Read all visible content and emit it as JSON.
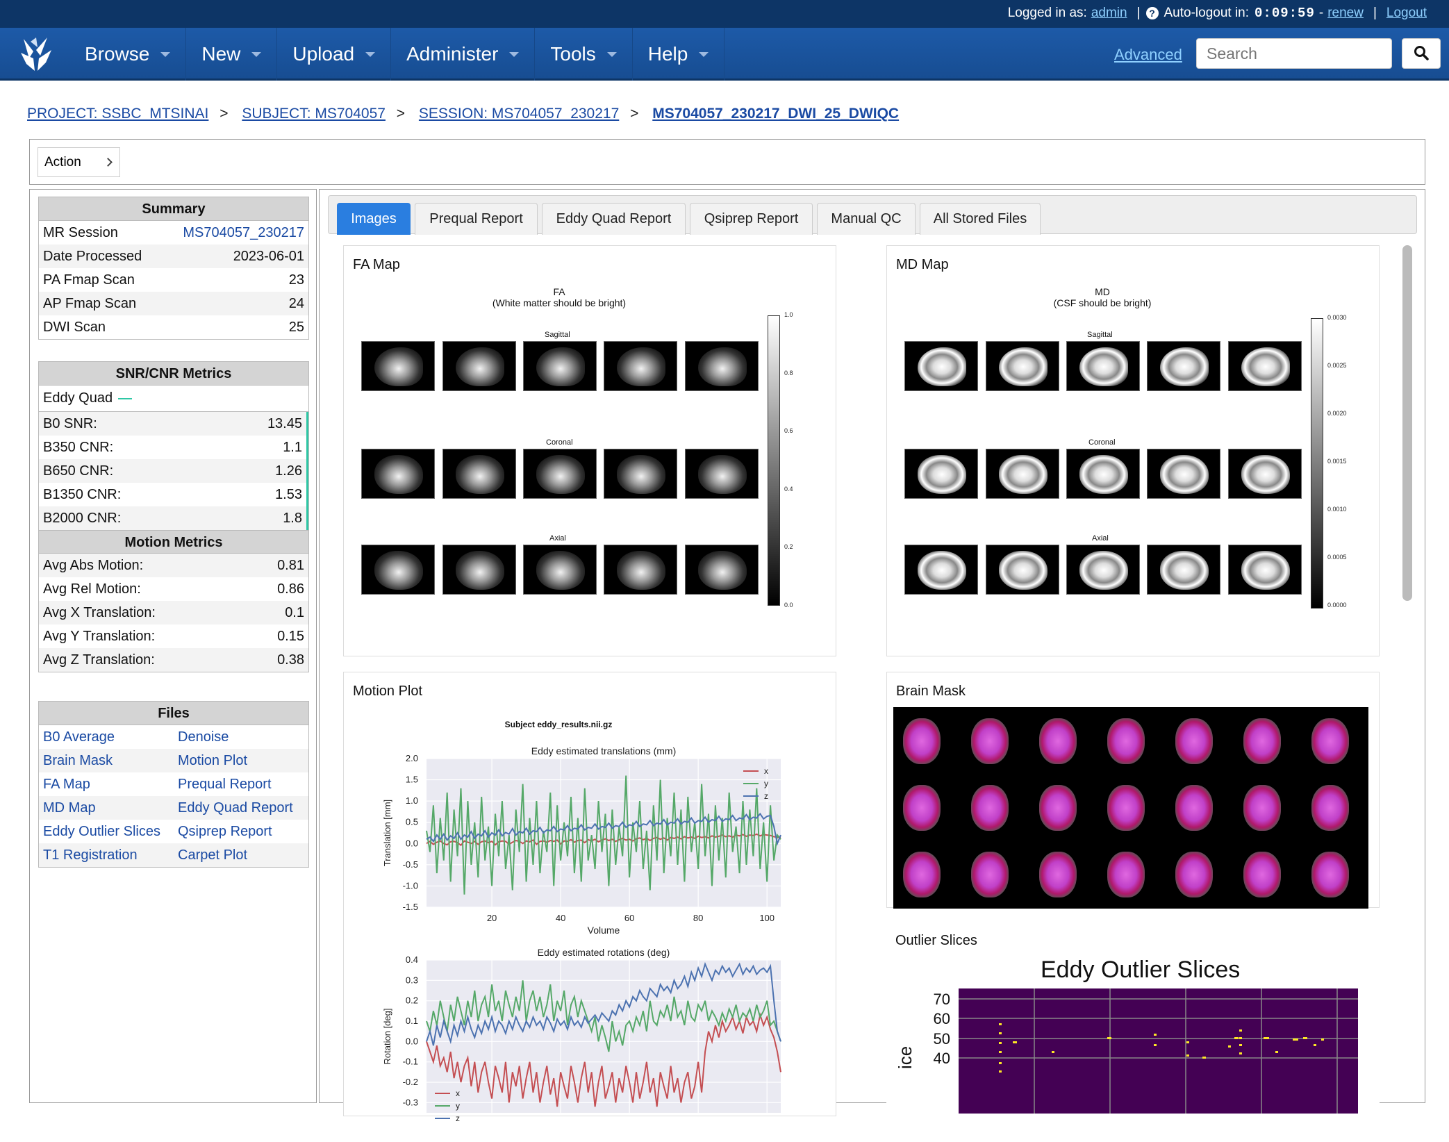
{
  "topbar": {
    "logged_in_label": "Logged in as:",
    "user": "admin",
    "autologout_label": "Auto-logout in:",
    "timer": "0:09:59",
    "timer_sep": "-",
    "renew": "renew",
    "logout": "Logout",
    "separator": "|"
  },
  "nav": {
    "items": [
      {
        "label": "Browse"
      },
      {
        "label": "New"
      },
      {
        "label": "Upload"
      },
      {
        "label": "Administer"
      },
      {
        "label": "Tools"
      },
      {
        "label": "Help"
      }
    ],
    "advanced": "Advanced",
    "search_placeholder": "Search"
  },
  "breadcrumb": {
    "project": "PROJECT: SSBC_MTSINAI",
    "subject": "SUBJECT: MS704057",
    "session": "SESSION: MS704057_230217",
    "current": "MS704057_230217_DWI_25_DWIQC",
    "sep": ">"
  },
  "action": {
    "label": "Action"
  },
  "summary": {
    "title": "Summary",
    "rows": [
      {
        "label": "MR Session",
        "value": "MS704057_230217"
      },
      {
        "label": "Date Processed",
        "value": "2023-06-01"
      },
      {
        "label": "PA Fmap Scan",
        "value": "23"
      },
      {
        "label": "AP Fmap Scan",
        "value": "24"
      },
      {
        "label": "DWI Scan",
        "value": "25"
      }
    ]
  },
  "snr": {
    "title": "SNR/CNR Metrics",
    "eddy_quad": "Eddy Quad",
    "rows": [
      {
        "label": "B0 SNR:",
        "value": "13.45"
      },
      {
        "label": "B350 CNR:",
        "value": "1.1"
      },
      {
        "label": "B650 CNR:",
        "value": "1.26"
      },
      {
        "label": "B1350 CNR:",
        "value": "1.53"
      },
      {
        "label": "B2000 CNR:",
        "value": "1.8"
      }
    ]
  },
  "motion": {
    "title": "Motion Metrics",
    "rows": [
      {
        "label": "Avg Abs Motion:",
        "value": "0.81"
      },
      {
        "label": "Avg Rel Motion:",
        "value": "0.86"
      },
      {
        "label": "Avg X Translation:",
        "value": "0.1"
      },
      {
        "label": "Avg Y Translation:",
        "value": "0.15"
      },
      {
        "label": "Avg Z Translation:",
        "value": "0.38"
      }
    ]
  },
  "files": {
    "title": "Files",
    "items": [
      "B0 Average",
      "Denoise",
      "Brain Mask",
      "Motion Plot",
      "FA Map",
      "Prequal Report",
      "MD Map",
      "Eddy Quad Report",
      "Eddy Outlier Slices",
      "Qsiprep Report",
      "T1 Registration",
      "Carpet Plot"
    ]
  },
  "tabs": [
    "Images",
    "Prequal Report",
    "Eddy Quad Report",
    "Qsiprep Report",
    "Manual QC",
    "All Stored Files"
  ],
  "fa": {
    "card_title": "FA Map",
    "title1": "FA",
    "title2": "(White matter should be bright)",
    "rows": [
      "Sagittal",
      "Coronal",
      "Axial"
    ],
    "cbar_ticks": [
      "1.0",
      "0.8",
      "0.6",
      "0.4",
      "0.2",
      "0.0"
    ]
  },
  "md": {
    "card_title": "MD Map",
    "title1": "MD",
    "title2": "(CSF should be bright)",
    "rows": [
      "Sagittal",
      "Coronal",
      "Axial"
    ],
    "cbar_ticks": [
      "0.0030",
      "0.0025",
      "0.0020",
      "0.0015",
      "0.0010",
      "0.0005",
      "0.0000"
    ]
  },
  "motion_plot": {
    "card_title": "Motion Plot",
    "subject": "Subject eddy_results.nii.gz"
  },
  "brain_mask": {
    "card_title": "Brain Mask"
  },
  "outlier": {
    "card_title": "Outlier Slices"
  },
  "colors": {
    "red": "#c44e52",
    "green": "#55a868",
    "blue": "#4c72b0",
    "accent": "#2a7ee0",
    "teal": "#2ec7a5"
  },
  "chart_data": [
    {
      "type": "line",
      "title": "Eddy estimated translations (mm)",
      "xlabel": "Volume",
      "ylabel": "Translation [mm]",
      "xlim": [
        1,
        104
      ],
      "ylim": [
        -1.5,
        2.0
      ],
      "xticks": [
        20,
        40,
        60,
        80,
        100
      ],
      "yticks": [
        2.0,
        1.5,
        1.0,
        0.5,
        0.0,
        -0.5,
        -1.0,
        -1.5
      ],
      "legend": "top-right",
      "grid": true,
      "series": [
        {
          "name": "x",
          "color": "#c44e52",
          "values": [
            0.0,
            0.05,
            -0.02,
            0.03,
            0.06,
            0.0,
            -0.03,
            0.04,
            0.05,
            0.02,
            -0.04,
            0.06,
            0.03,
            0.0,
            0.05,
            -0.02,
            0.04,
            0.06,
            0.02,
            0.05,
            -0.03,
            0.04,
            0.06,
            0.05,
            -0.02,
            0.03,
            0.07,
            0.05,
            0.0,
            0.06,
            0.04,
            0.08,
            -0.02,
            0.05,
            0.06,
            0.03,
            0.07,
            0.05,
            0.08,
            -0.01,
            0.06,
            0.05,
            0.09,
            0.03,
            0.07,
            0.08,
            0.02,
            0.09,
            0.06,
            0.1,
            0.04,
            0.08,
            0.11,
            0.07,
            0.1,
            0.05,
            0.09,
            0.12,
            0.08,
            0.1,
            0.06,
            0.11,
            0.13,
            0.09,
            0.12,
            0.07,
            0.12,
            0.14,
            0.1,
            0.13,
            0.08,
            0.14,
            0.12,
            0.15,
            0.11,
            0.16,
            0.13,
            0.15,
            0.12,
            0.17,
            0.14,
            0.16,
            0.13,
            0.18,
            0.15,
            0.17,
            0.2,
            0.16,
            0.18,
            0.15,
            0.2,
            0.18,
            0.21,
            0.17,
            0.2,
            0.19,
            0.22,
            0.18,
            0.21,
            0.2,
            0.19,
            0.16,
            0.15,
            0.14
          ]
        },
        {
          "name": "y",
          "color": "#55a868",
          "values": [
            0.3,
            -0.2,
            0.9,
            -0.7,
            0.6,
            -0.4,
            1.2,
            -0.9,
            0.8,
            -0.3,
            1.3,
            -1.2,
            1.0,
            -0.5,
            0.5,
            -0.8,
            1.1,
            -0.4,
            0.4,
            -1.0,
            0.7,
            -0.3,
            1.0,
            -0.6,
            0.2,
            -1.1,
            0.8,
            -0.2,
            1.4,
            -0.9,
            0.6,
            -0.5,
            1.0,
            -0.7,
            0.3,
            -0.2,
            1.2,
            -1.0,
            0.9,
            -0.4,
            0.5,
            -0.3,
            1.1,
            -0.7,
            0.6,
            -0.9,
            1.3,
            -0.4,
            0.2,
            -0.6,
            1.0,
            -0.2,
            0.7,
            -1.0,
            0.8,
            -0.5,
            0.4,
            -0.3,
            1.6,
            -0.8,
            0.5,
            -0.2,
            1.0,
            -0.6,
            0.3,
            -1.1,
            0.9,
            -0.4,
            1.5,
            -0.7,
            0.6,
            -0.3,
            1.2,
            -0.5,
            0.8,
            -0.9,
            1.1,
            -0.2,
            0.5,
            -0.6,
            1.4,
            -0.3,
            0.7,
            -1.0,
            0.9,
            -0.4,
            0.6,
            -0.8,
            1.2,
            -0.2,
            0.4,
            -0.7,
            1.0,
            -0.5,
            0.8,
            -0.3,
            1.3,
            -0.6,
            0.5,
            -0.9,
            0.9,
            -0.4,
            0.2,
            0.1
          ]
        },
        {
          "name": "z",
          "color": "#4c72b0",
          "values": [
            0.1,
            0.15,
            0.05,
            0.2,
            0.1,
            0.22,
            0.08,
            0.18,
            0.12,
            0.25,
            0.1,
            0.2,
            0.15,
            0.28,
            0.12,
            0.22,
            0.18,
            0.3,
            0.15,
            0.25,
            0.2,
            0.32,
            0.18,
            0.26,
            0.22,
            0.35,
            0.2,
            0.28,
            0.25,
            0.36,
            0.22,
            0.3,
            0.28,
            0.38,
            0.25,
            0.32,
            0.3,
            0.4,
            0.28,
            0.34,
            0.32,
            0.42,
            0.3,
            0.36,
            0.34,
            0.44,
            0.32,
            0.38,
            0.36,
            0.46,
            0.34,
            0.4,
            0.38,
            0.48,
            0.36,
            0.42,
            0.4,
            0.5,
            0.38,
            0.44,
            0.42,
            0.52,
            0.4,
            0.46,
            0.44,
            0.54,
            0.42,
            0.48,
            0.46,
            0.56,
            0.44,
            0.5,
            0.48,
            0.58,
            0.46,
            0.52,
            0.5,
            0.6,
            0.48,
            0.54,
            0.52,
            0.62,
            0.5,
            0.56,
            0.54,
            0.64,
            0.52,
            0.58,
            0.56,
            0.66,
            0.54,
            0.6,
            0.58,
            0.68,
            0.56,
            0.62,
            0.6,
            0.7,
            0.58,
            0.64,
            0.66,
            0.4,
            0.0,
            0.2
          ]
        }
      ]
    },
    {
      "type": "line",
      "title": "Eddy estimated rotations (deg)",
      "ylabel": "Rotation [deg]",
      "xlim": [
        1,
        104
      ],
      "ylim": [
        -0.35,
        0.4
      ],
      "yticks": [
        0.4,
        0.3,
        0.2,
        0.1,
        0.0,
        -0.1,
        -0.2,
        -0.3
      ],
      "legend": "bottom-left",
      "grid": true,
      "series": [
        {
          "name": "x",
          "color": "#c44e52",
          "values": [
            0.0,
            -0.05,
            -0.1,
            -0.02,
            -0.12,
            -0.08,
            -0.15,
            -0.05,
            -0.18,
            -0.1,
            -0.2,
            -0.12,
            -0.08,
            -0.22,
            -0.1,
            -0.25,
            -0.15,
            -0.1,
            -0.2,
            -0.28,
            -0.12,
            -0.18,
            -0.25,
            -0.1,
            -0.3,
            -0.15,
            -0.22,
            -0.12,
            -0.28,
            -0.18,
            -0.1,
            -0.25,
            -0.15,
            -0.3,
            -0.2,
            -0.12,
            -0.26,
            -0.18,
            -0.32,
            -0.15,
            -0.22,
            -0.28,
            -0.12,
            -0.2,
            -0.3,
            -0.18,
            -0.1,
            -0.25,
            -0.15,
            -0.32,
            -0.2,
            -0.12,
            -0.28,
            -0.22,
            -0.15,
            -0.3,
            -0.18,
            -0.25,
            -0.12,
            -0.2,
            -0.3,
            -0.15,
            -0.28,
            -0.2,
            -0.1,
            -0.25,
            -0.18,
            -0.32,
            -0.15,
            -0.22,
            -0.28,
            -0.12,
            -0.25,
            -0.18,
            -0.3,
            -0.2,
            -0.15,
            -0.28,
            -0.22,
            -0.1,
            -0.25,
            -0.05,
            0.05,
            0.0,
            0.08,
            0.02,
            0.1,
            0.05,
            0.08,
            0.12,
            0.06,
            0.1,
            0.04,
            0.12,
            0.08,
            0.1,
            0.05,
            0.13,
            0.08,
            0.12,
            0.06,
            0.02,
            -0.05,
            -0.15
          ]
        },
        {
          "name": "y",
          "color": "#55a868",
          "values": [
            0.1,
            0.05,
            0.15,
            0.08,
            0.2,
            0.12,
            0.05,
            0.18,
            0.1,
            0.22,
            0.15,
            0.08,
            0.2,
            0.12,
            0.25,
            0.1,
            0.18,
            0.22,
            0.12,
            0.28,
            0.15,
            0.2,
            0.1,
            0.25,
            0.18,
            0.12,
            0.22,
            0.15,
            0.3,
            0.1,
            0.2,
            0.25,
            0.15,
            0.22,
            0.12,
            0.18,
            0.28,
            0.1,
            0.2,
            0.15,
            0.25,
            0.08,
            0.18,
            0.22,
            0.12,
            0.2,
            0.15,
            0.1,
            0.05,
            0.12,
            0.0,
            0.08,
            0.02,
            -0.05,
            0.1,
            0.0,
            0.05,
            -0.02,
            0.08,
            0.1,
            0.05,
            0.12,
            0.08,
            0.15,
            0.05,
            0.2,
            0.1,
            0.08,
            0.15,
            0.12,
            0.18,
            0.1,
            0.22,
            0.12,
            0.15,
            0.08,
            0.2,
            0.12,
            0.1,
            0.18,
            0.15,
            0.2,
            0.1,
            0.15,
            0.12,
            0.08,
            0.14,
            0.1,
            0.16,
            0.12,
            0.18,
            0.1,
            0.14,
            0.12,
            0.16,
            0.1,
            0.18,
            0.12,
            0.15,
            0.2,
            0.08,
            0.1,
            0.05,
            0.0
          ]
        },
        {
          "name": "z",
          "color": "#4c72b0",
          "values": [
            0.0,
            0.05,
            -0.02,
            0.08,
            0.02,
            0.1,
            0.05,
            0.0,
            0.08,
            0.03,
            0.1,
            0.05,
            0.12,
            0.06,
            0.02,
            0.08,
            0.04,
            0.1,
            0.06,
            0.12,
            0.05,
            0.1,
            0.08,
            0.04,
            0.1,
            0.06,
            0.12,
            0.08,
            0.05,
            0.1,
            0.07,
            0.12,
            0.08,
            0.1,
            0.06,
            0.12,
            0.09,
            0.05,
            0.11,
            0.08,
            0.1,
            0.06,
            0.12,
            0.08,
            0.1,
            0.07,
            0.12,
            0.09,
            0.11,
            0.13,
            0.1,
            0.14,
            0.12,
            0.1,
            0.15,
            0.13,
            0.18,
            0.15,
            0.2,
            0.17,
            0.22,
            0.2,
            0.25,
            0.22,
            0.2,
            0.26,
            0.24,
            0.22,
            0.28,
            0.25,
            0.27,
            0.24,
            0.3,
            0.26,
            0.28,
            0.32,
            0.27,
            0.34,
            0.3,
            0.36,
            0.32,
            0.38,
            0.34,
            0.3,
            0.35,
            0.33,
            0.37,
            0.34,
            0.36,
            0.32,
            0.35,
            0.38,
            0.33,
            0.36,
            0.34,
            0.37,
            0.33,
            0.35,
            0.36,
            0.34,
            0.37,
            0.2,
            0.05,
            0.0
          ]
        }
      ]
    }
  ]
}
